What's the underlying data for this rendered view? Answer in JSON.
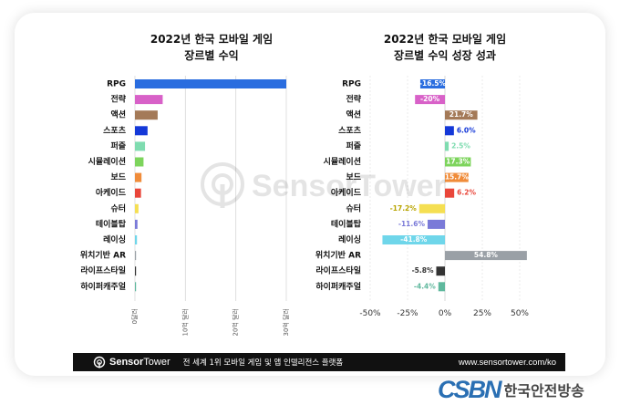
{
  "left_chart": {
    "title_line1": "2022년 한국 모바일 게임",
    "title_line2": "장르별 수익",
    "x_ticks": [
      "0달러",
      "10억 달러",
      "20억 달러",
      "30억 달러"
    ]
  },
  "right_chart": {
    "title_line1": "2022년 한국 모바일 게임",
    "title_line2": "장르별 수익 성장 성과",
    "x_ticks": [
      "-50%",
      "-25%",
      "0%",
      "25%",
      "50%"
    ]
  },
  "chart_data": [
    {
      "type": "bar",
      "orientation": "horizontal",
      "title": "2022년 한국 모바일 게임 장르별 수익",
      "categories": [
        "RPG",
        "전략",
        "액션",
        "스포츠",
        "퍼즐",
        "시뮬레이션",
        "보드",
        "아케이드",
        "슈터",
        "테이블탑",
        "레이싱",
        "위치기반 AR",
        "라이프스타일",
        "하이퍼캐주얼"
      ],
      "values": [
        3.0,
        0.55,
        0.45,
        0.25,
        0.2,
        0.17,
        0.13,
        0.12,
        0.07,
        0.05,
        0.04,
        0.02,
        0.015,
        0.01
      ],
      "unit": "10억 달러",
      "xlim": [
        0,
        3.0
      ],
      "colors": [
        "#2a6ddf",
        "#d861c8",
        "#a47a58",
        "#1438d8",
        "#7fdcb0",
        "#7dd45c",
        "#f08c3a",
        "#e9463a",
        "#f5df52",
        "#7a7ad8",
        "#6fd6ea",
        "#9aa0a6",
        "#333333",
        "#5fb89d"
      ]
    },
    {
      "type": "bar",
      "orientation": "horizontal",
      "title": "2022년 한국 모바일 게임 장르별 수익 성장 성과",
      "categories": [
        "RPG",
        "전략",
        "액션",
        "스포츠",
        "퍼즐",
        "시뮬레이션",
        "보드",
        "아케이드",
        "슈터",
        "테이블탑",
        "레이싱",
        "위치기반 AR",
        "라이프스타일",
        "하이퍼캐주얼"
      ],
      "values": [
        -16.5,
        -20,
        21.7,
        6.0,
        2.5,
        17.3,
        15.7,
        6.2,
        -17.2,
        -11.6,
        -41.8,
        54.8,
        -5.8,
        -4.4
      ],
      "labels": [
        "-16.5%",
        "-20%",
        "21.7%",
        "6.0%",
        "2.5%",
        "17.3%",
        "15.7%",
        "6.2%",
        "-17.2%",
        "-11.6%",
        "-41.8%",
        "54.8%",
        "-5.8%",
        "-4.4%"
      ],
      "unit": "%",
      "xlim": [
        -50,
        50
      ],
      "colors": [
        "#2a6ddf",
        "#d861c8",
        "#a47a58",
        "#1438d8",
        "#7fdcb0",
        "#7dd45c",
        "#f08c3a",
        "#e9463a",
        "#f5df52",
        "#7a7ad8",
        "#6fd6ea",
        "#9aa0a6",
        "#333333",
        "#5fb89d"
      ],
      "label_colors": [
        "#ffffff",
        "#ffffff",
        "#ffffff",
        "#1438d8",
        "#7fdcb0",
        "#ffffff",
        "#ffffff",
        "#e9463a",
        "#b8a400",
        "#7a7ad8",
        "#ffffff",
        "#ffffff",
        "#333333",
        "#5fb89d"
      ]
    }
  ],
  "watermark": {
    "text": "SensorTower"
  },
  "footer": {
    "brand_part1": "Sensor",
    "brand_part2": "Tower",
    "tagline": "전 세계 1위 모바일 게임 및 앱 인텔리전스 플랫폼",
    "url": "www.sensortower.com/ko"
  },
  "broadcaster": {
    "mark": "CSBN",
    "name": "한국안전방송"
  }
}
